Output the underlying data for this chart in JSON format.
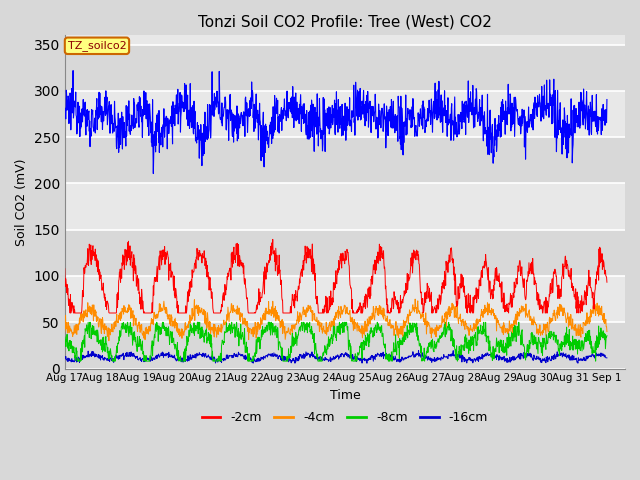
{
  "title": "Tonzi Soil CO2 Profile: Tree (West) CO2",
  "ylabel": "Soil CO2 (mV)",
  "xlabel": "Time",
  "ylim": [
    0,
    360
  ],
  "xlim": [
    0,
    15.5
  ],
  "legend_labels": [
    "-2cm",
    "-4cm",
    "-8cm",
    "-16cm"
  ],
  "legend_colors": [
    "#ff0000",
    "#ff8c00",
    "#00ee00",
    "#0000ff"
  ],
  "tz_label": "TZ_soilco2",
  "tz_color": "#0000ff",
  "tick_labels": [
    "Aug 17",
    "Aug 18",
    "Aug 19",
    "Aug 20",
    "Aug 21",
    "Aug 22",
    "Aug 23",
    "Aug 24",
    "Aug 25",
    "Aug 26",
    "Aug 27",
    "Aug 28",
    "Aug 29",
    "Aug 30",
    "Aug 31",
    "Sep 1"
  ],
  "background_color": "#d8d8d8",
  "plot_bg_light": "#e8e8e8",
  "plot_bg_dark": "#d0d0d0",
  "grid_color": "#ffffff",
  "title_fontsize": 11,
  "axis_fontsize": 9,
  "tick_fontsize": 7.5
}
